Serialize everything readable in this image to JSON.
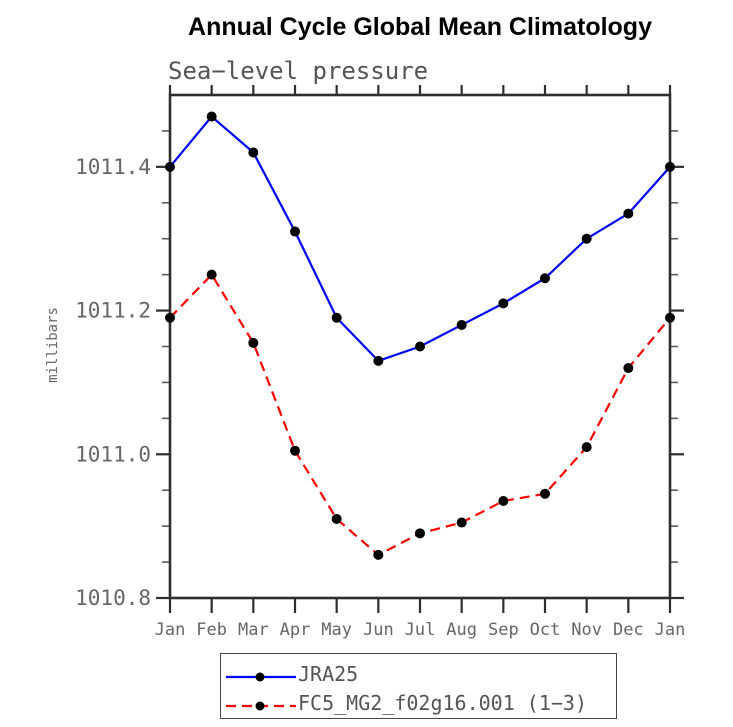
{
  "chart_data": {
    "type": "line",
    "title": "Annual Cycle Global Mean Climatology",
    "subtitle": "Sea−level pressure",
    "ylabel": "millibars",
    "categories": [
      "Jan",
      "Feb",
      "Mar",
      "Apr",
      "May",
      "Jun",
      "Jul",
      "Aug",
      "Sep",
      "Oct",
      "Nov",
      "Dec",
      "Jan"
    ],
    "ylim": [
      1010.8,
      1011.5
    ],
    "yticks_major": [
      1010.8,
      1011.0,
      1011.2,
      1011.4
    ],
    "ytick_labels": [
      "1010.8",
      "1011.0",
      "1011.2",
      "1011.4"
    ],
    "y_minor_step": 0.05,
    "grid": false,
    "legend_position": "bottom",
    "series": [
      {
        "name": "JRA25",
        "color": "#0000ff",
        "style": "solid",
        "marker": "circle",
        "marker_color": "#000000",
        "values": [
          1011.4,
          1011.47,
          1011.42,
          1011.31,
          1011.19,
          1011.13,
          1011.15,
          1011.18,
          1011.21,
          1011.245,
          1011.3,
          1011.335,
          1011.4
        ]
      },
      {
        "name": "FC5_MG2_f02g16.001 (1−3)",
        "color": "#ff0000",
        "style": "dashed",
        "marker": "circle",
        "marker_color": "#000000",
        "values": [
          1011.19,
          1011.25,
          1011.155,
          1011.005,
          1010.91,
          1010.86,
          1010.89,
          1010.905,
          1010.935,
          1010.945,
          1011.01,
          1011.12,
          1011.19
        ]
      }
    ],
    "colors": {
      "axis": "#2e2e2e",
      "minor_tick": "#5a5a5a",
      "tick_label": "#666666",
      "subtitle_text": "#555555",
      "legend_border": "#444444",
      "legend_text": "#555555",
      "background": "#ffffff"
    }
  }
}
